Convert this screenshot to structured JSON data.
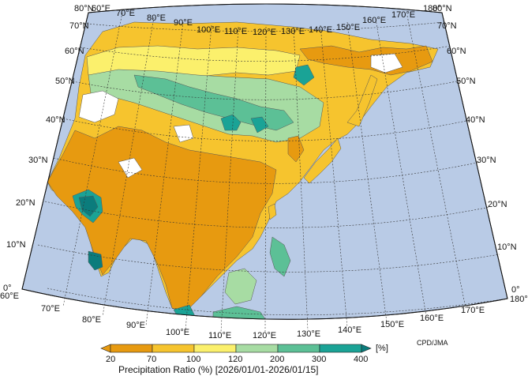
{
  "colors": {
    "ocean": "#b9cbe6",
    "dry_20_70": "#e79a10",
    "dry_70_100": "#f6c42e",
    "norm_100_120": "#fbf06c",
    "wet_120_200": "#a7dca3",
    "wet_200_300": "#5cc096",
    "wet_300_400": "#1aa396",
    "wet_400_plus": "#0b7c7c",
    "no_data": "#ffffff"
  },
  "map": {
    "longitude_labels_top": [
      "60°E",
      "70°E",
      "80°E",
      "90°E",
      "100°E",
      "110°E",
      "120°E",
      "130°E",
      "140°E",
      "150°E",
      "160°E",
      "170°E",
      "180°"
    ],
    "longitude_labels_bottom": [
      "60°E",
      "70°E",
      "80°E",
      "90°E",
      "100°E",
      "110°E",
      "120°E",
      "130°E",
      "140°E",
      "150°E",
      "160°E",
      "170°E",
      "180°"
    ],
    "latitude_labels_left": [
      "80°N",
      "70°N",
      "60°N",
      "50°N",
      "40°N",
      "30°N",
      "20°N",
      "10°N",
      "0°"
    ],
    "latitude_labels_right": [
      "80°N",
      "70°N",
      "60°N",
      "50°N",
      "40°N",
      "30°N",
      "20°N",
      "10°N",
      "0°"
    ]
  },
  "colorbar": {
    "tick_labels": [
      "20",
      "70",
      "100",
      "120",
      "200",
      "300",
      "400"
    ],
    "unit": "[%]",
    "title": "Precipitation Ratio (%) [2026/01/01-2026/01/15]"
  },
  "credit": "CPD/JMA"
}
